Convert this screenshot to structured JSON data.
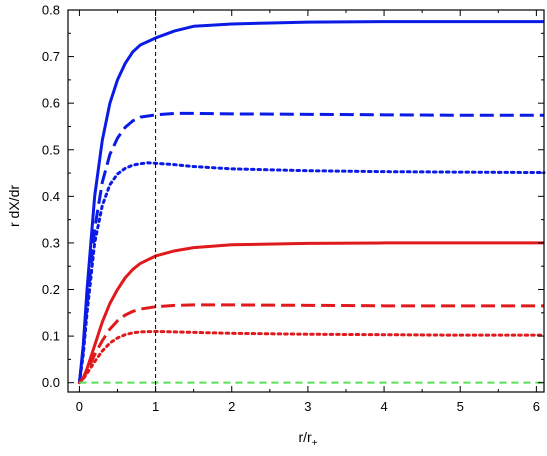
{
  "chart_data": {
    "type": "line",
    "xlabel": "r/r",
    "xlabel_subscript": "+",
    "ylabel": "r dX/dr",
    "xlim": [
      -0.15,
      6.1
    ],
    "ylim": [
      -0.02,
      0.8
    ],
    "xticks": [
      0,
      1,
      2,
      3,
      4,
      5,
      6
    ],
    "yticks": [
      0.0,
      0.1,
      0.2,
      0.3,
      0.4,
      0.5,
      0.6,
      0.7,
      0.8
    ],
    "ytick_labels": [
      "0.0",
      "0.1",
      "0.2",
      "0.3",
      "0.4",
      "0.5",
      "0.6",
      "0.7",
      "0.8"
    ],
    "vertical_reference_line": {
      "x": 1,
      "style": "dashed",
      "color": "#000000"
    },
    "grid": false,
    "series": [
      {
        "color": "#0b1be6",
        "style": "solid",
        "points": [
          [
            0,
            0
          ],
          [
            0.05,
            0.08
          ],
          [
            0.1,
            0.2
          ],
          [
            0.2,
            0.4
          ],
          [
            0.3,
            0.52
          ],
          [
            0.4,
            0.6
          ],
          [
            0.5,
            0.65
          ],
          [
            0.6,
            0.685
          ],
          [
            0.7,
            0.71
          ],
          [
            0.8,
            0.725
          ],
          [
            1,
            0.74
          ],
          [
            1.25,
            0.755
          ],
          [
            1.5,
            0.765
          ],
          [
            2,
            0.77
          ],
          [
            3,
            0.774
          ],
          [
            4,
            0.775
          ],
          [
            5,
            0.775
          ],
          [
            6.1,
            0.775
          ]
        ]
      },
      {
        "color": "#0b1be6",
        "style": "dashed",
        "points": [
          [
            0,
            0
          ],
          [
            0.05,
            0.07
          ],
          [
            0.1,
            0.17
          ],
          [
            0.2,
            0.33
          ],
          [
            0.3,
            0.43
          ],
          [
            0.4,
            0.49
          ],
          [
            0.5,
            0.525
          ],
          [
            0.6,
            0.548
          ],
          [
            0.7,
            0.562
          ],
          [
            0.8,
            0.57
          ],
          [
            1,
            0.575
          ],
          [
            1.25,
            0.578
          ],
          [
            1.5,
            0.578
          ],
          [
            2,
            0.577
          ],
          [
            3,
            0.576
          ],
          [
            4,
            0.575
          ],
          [
            5,
            0.574
          ],
          [
            6.1,
            0.574
          ]
        ]
      },
      {
        "color": "#0b1be6",
        "style": "dotted",
        "points": [
          [
            0,
            0
          ],
          [
            0.05,
            0.06
          ],
          [
            0.1,
            0.15
          ],
          [
            0.2,
            0.3
          ],
          [
            0.3,
            0.38
          ],
          [
            0.4,
            0.425
          ],
          [
            0.5,
            0.448
          ],
          [
            0.6,
            0.46
          ],
          [
            0.7,
            0.467
          ],
          [
            0.8,
            0.47
          ],
          [
            0.9,
            0.472
          ],
          [
            1,
            0.471
          ],
          [
            1.25,
            0.468
          ],
          [
            1.5,
            0.464
          ],
          [
            2,
            0.459
          ],
          [
            3,
            0.455
          ],
          [
            4,
            0.453
          ],
          [
            5,
            0.452
          ],
          [
            6.1,
            0.451
          ]
        ]
      },
      {
        "color": "#e0191d",
        "style": "solid",
        "points": [
          [
            0,
            0
          ],
          [
            0.05,
            0.01
          ],
          [
            0.1,
            0.03
          ],
          [
            0.2,
            0.08
          ],
          [
            0.3,
            0.13
          ],
          [
            0.4,
            0.17
          ],
          [
            0.5,
            0.2
          ],
          [
            0.6,
            0.225
          ],
          [
            0.7,
            0.243
          ],
          [
            0.8,
            0.256
          ],
          [
            1,
            0.272
          ],
          [
            1.25,
            0.283
          ],
          [
            1.5,
            0.29
          ],
          [
            2,
            0.296
          ],
          [
            3,
            0.299
          ],
          [
            4,
            0.3
          ],
          [
            5,
            0.3
          ],
          [
            6.1,
            0.3
          ]
        ]
      },
      {
        "color": "#e0191d",
        "style": "dashed",
        "points": [
          [
            0,
            0
          ],
          [
            0.05,
            0.01
          ],
          [
            0.1,
            0.025
          ],
          [
            0.2,
            0.06
          ],
          [
            0.3,
            0.09
          ],
          [
            0.4,
            0.115
          ],
          [
            0.5,
            0.133
          ],
          [
            0.6,
            0.145
          ],
          [
            0.7,
            0.153
          ],
          [
            0.8,
            0.158
          ],
          [
            1,
            0.163
          ],
          [
            1.25,
            0.166
          ],
          [
            1.5,
            0.167
          ],
          [
            2,
            0.167
          ],
          [
            3,
            0.166
          ],
          [
            4,
            0.165
          ],
          [
            5,
            0.165
          ],
          [
            6.1,
            0.165
          ]
        ]
      },
      {
        "color": "#e0191d",
        "style": "dotted",
        "points": [
          [
            0,
            0
          ],
          [
            0.05,
            0.008
          ],
          [
            0.1,
            0.02
          ],
          [
            0.2,
            0.045
          ],
          [
            0.3,
            0.068
          ],
          [
            0.4,
            0.085
          ],
          [
            0.5,
            0.096
          ],
          [
            0.6,
            0.103
          ],
          [
            0.7,
            0.107
          ],
          [
            0.8,
            0.109
          ],
          [
            1,
            0.11
          ],
          [
            1.25,
            0.109
          ],
          [
            1.5,
            0.108
          ],
          [
            2,
            0.106
          ],
          [
            3,
            0.104
          ],
          [
            4,
            0.103
          ],
          [
            5,
            0.102
          ],
          [
            6.1,
            0.102
          ]
        ]
      },
      {
        "color": "#55e055",
        "style": "dashed",
        "points": [
          [
            0,
            0
          ],
          [
            6.1,
            0
          ]
        ]
      }
    ]
  }
}
